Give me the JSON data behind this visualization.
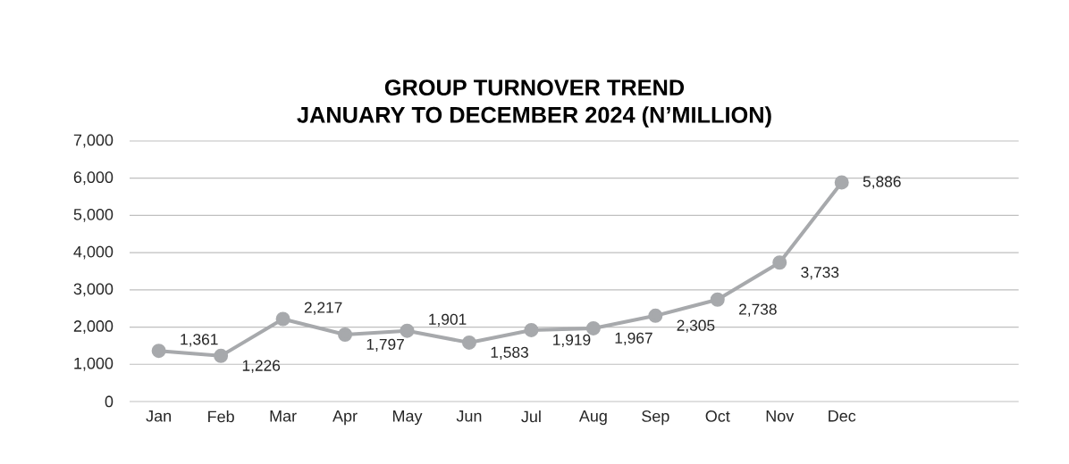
{
  "chart_data": {
    "type": "line",
    "title": "GROUP TURNOVER TREND",
    "subtitle": "JANUARY TO DECEMBER 2024 (N’MILLION)",
    "categories": [
      "Jan",
      "Feb",
      "Mar",
      "Apr",
      "May",
      "Jun",
      "Jul",
      "Aug",
      "Sep",
      "Oct",
      "Nov",
      "Dec"
    ],
    "series": [
      {
        "color": "#a7a9ac",
        "values": [
          1361,
          1226,
          2217,
          1797,
          1901,
          1583,
          1919,
          1967,
          2305,
          2738,
          3733,
          5886
        ],
        "value_labels": [
          "1,361",
          "1,226",
          "2,217",
          "1,797",
          "1,901",
          "1,583",
          "1,919",
          "1,967",
          "2,305",
          "2,738",
          "3,733",
          "5,886"
        ]
      }
    ],
    "ylim": [
      0,
      7000
    ],
    "yticks": [
      0,
      {
        "value": 1000,
        "label": "1,000"
      },
      {
        "value": 2000,
        "label": "2,000"
      },
      {
        "value": 3000,
        "label": "3,000"
      },
      {
        "value": 4000,
        "label": "4,000"
      },
      {
        "value": 5000,
        "label": "5,000"
      },
      {
        "value": 6000,
        "label": "6,000"
      },
      {
        "value": 7000,
        "label": "7,000"
      }
    ],
    "grid": "y",
    "marker": "circle",
    "line_style": "solid"
  }
}
